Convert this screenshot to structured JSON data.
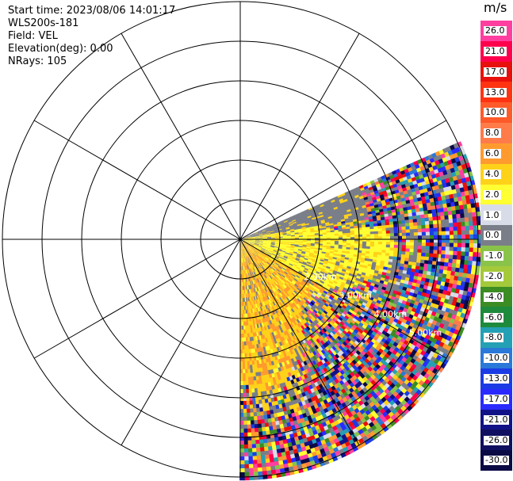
{
  "info": {
    "start_time": "Start time: 2023/08/06 14:01:17",
    "instrument": "WLS200s-181",
    "field": "Field: VEL",
    "elevation": "Elevation(deg): 0.00",
    "nrays": "NRays: 105"
  },
  "colorbar": {
    "unit": "m/s",
    "segments": [
      {
        "label": "26.0",
        "color": "#ff3fa0"
      },
      {
        "label": "21.0",
        "color": "#ff004c"
      },
      {
        "label": "17.0",
        "color": "#e8100c"
      },
      {
        "label": "13.0",
        "color": "#ff3311"
      },
      {
        "label": "10.0",
        "color": "#ff5a2a"
      },
      {
        "label": "8.0",
        "color": "#ff7b4a"
      },
      {
        "label": "6.0",
        "color": "#ff9b2e"
      },
      {
        "label": "4.0",
        "color": "#ffd21a"
      },
      {
        "label": "2.0",
        "color": "#ffff33"
      },
      {
        "label": "1.0",
        "color": "#d8dce8"
      },
      {
        "label": "0.0",
        "color": "#7a7e88"
      },
      {
        "label": "-1.0",
        "color": "#8ac34a"
      },
      {
        "label": "-2.0",
        "color": "#a4c93a"
      },
      {
        "label": "-4.0",
        "color": "#3c8c24"
      },
      {
        "label": "-6.0",
        "color": "#1e8a3c"
      },
      {
        "label": "-8.0",
        "color": "#24a0b4"
      },
      {
        "label": "-10.0",
        "color": "#2a78d8"
      },
      {
        "label": "-13.0",
        "color": "#1b3ce4"
      },
      {
        "label": "-17.0",
        "color": "#2a2aff"
      },
      {
        "label": "-21.0",
        "color": "#121288"
      },
      {
        "label": "-26.0",
        "color": "#101060"
      },
      {
        "label": "-30.0",
        "color": "#0a0a44"
      }
    ]
  },
  "range_labels": [
    {
      "text": "2.00km"
    },
    {
      "text": "3.00km"
    },
    {
      "text": "4.00km"
    },
    {
      "text": "5.00km"
    }
  ]
}
